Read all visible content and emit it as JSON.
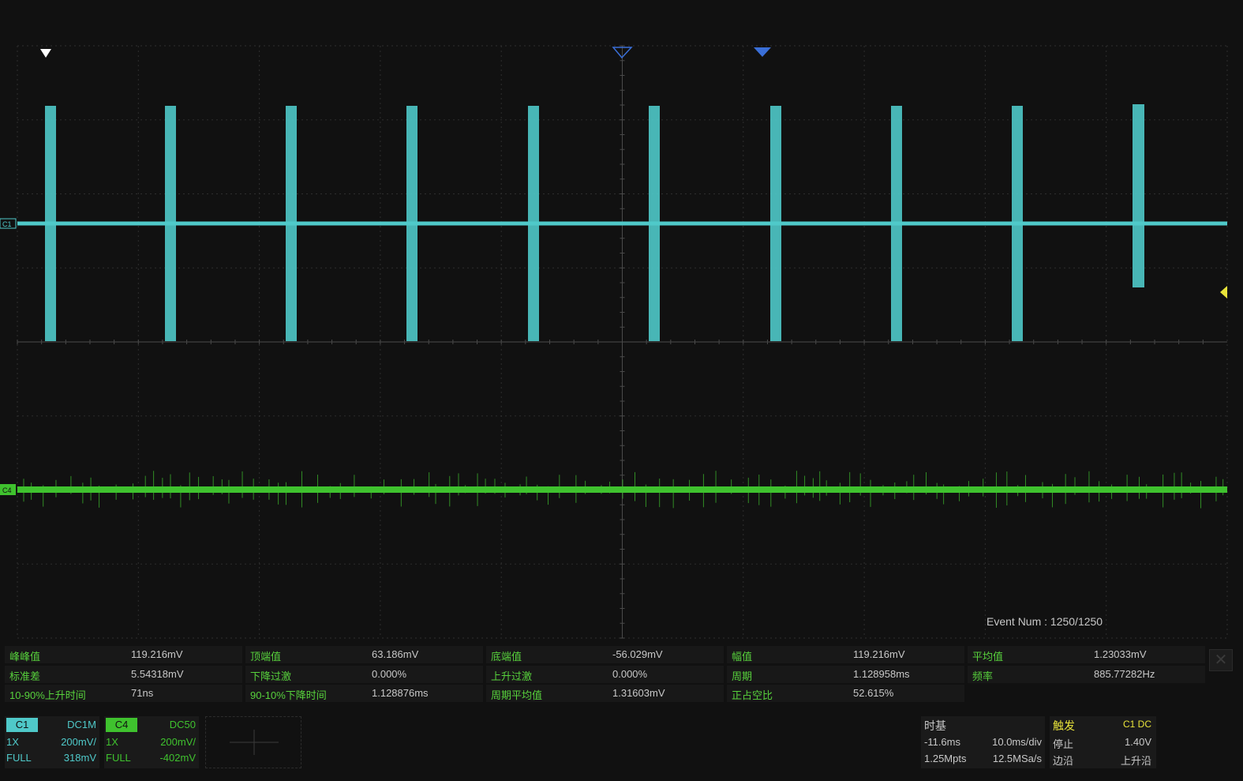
{
  "screen": {
    "event_num": "Event Num : 1250/1250"
  },
  "channel_markers": {
    "c1": "C1",
    "c4": "C4"
  },
  "measurements": [
    [
      {
        "label": "峰峰值",
        "value": "119.216mV"
      },
      {
        "label": "顶端值",
        "value": "63.186mV"
      },
      {
        "label": "底端值",
        "value": "-56.029mV"
      },
      {
        "label": "幅值",
        "value": "119.216mV"
      },
      {
        "label": "平均值",
        "value": "1.23033mV"
      }
    ],
    [
      {
        "label": "标准差",
        "value": "5.54318mV"
      },
      {
        "label": "下降过激",
        "value": "0.000%"
      },
      {
        "label": "上升过激",
        "value": "0.000%"
      },
      {
        "label": "周期",
        "value": "1.128958ms"
      },
      {
        "label": "频率",
        "value": "885.77282Hz"
      }
    ],
    [
      {
        "label": "10-90%上升时间",
        "value": "71ns"
      },
      {
        "label": "90-10%下降时间",
        "value": "1.128876ms"
      },
      {
        "label": "周期平均值",
        "value": "1.31603mV"
      },
      {
        "label": "正占空比",
        "value": "52.615%"
      }
    ]
  ],
  "channels": [
    {
      "name": "C1",
      "coupling": "DC1M",
      "probe": "1X",
      "scale": "200mV/",
      "bw": "FULL",
      "offset": "318mV",
      "color": "#4fc9c9"
    },
    {
      "name": "C4",
      "coupling": "DC50",
      "probe": "1X",
      "scale": "200mV/",
      "bw": "FULL",
      "offset": "-402mV",
      "color": "#3fc22e"
    }
  ],
  "timebase": {
    "title": "时基",
    "delay": "-11.6ms",
    "scale": "10.0ms/div",
    "memory": "1.25Mpts",
    "sample_rate": "12.5MSa/s"
  },
  "trigger": {
    "title": "触发",
    "source": "C1 DC",
    "state": "停止",
    "level": "1.40V",
    "type_label": "边沿",
    "slope": "上升沿"
  },
  "colors": {
    "c1_trace": "#4fc9c9",
    "c4_trace": "#3fc22e",
    "label_green": "#57d13c",
    "grid": "#2e2e2e",
    "marker_blue": "#3a6fd8",
    "trigger_yellow": "#e8e33a"
  }
}
